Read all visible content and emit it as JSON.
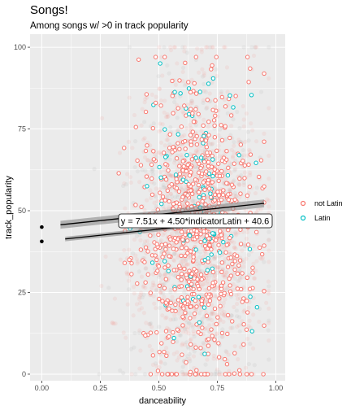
{
  "chart_data": {
    "type": "scatter",
    "title": "Songs!",
    "subtitle": "Among songs w/ >0 in track popularity",
    "xlabel": "danceability",
    "ylabel": "track_popularity",
    "xlim": [
      -0.05,
      1.04
    ],
    "ylim": [
      -2,
      104
    ],
    "x_ticks": [
      0,
      0.25,
      0.5,
      0.75,
      1
    ],
    "x_tick_labels": [
      "0.00",
      "0.25",
      "0.50",
      "0.75",
      "1.00"
    ],
    "y_ticks": [
      0,
      25,
      50,
      75,
      100
    ],
    "y_tick_labels": [
      "0",
      "25",
      "50",
      "75",
      "100"
    ],
    "grid": true,
    "legend": {
      "position": "right",
      "entries": [
        {
          "label": "not Latin",
          "color": "#F8766D"
        },
        {
          "label": "Latin",
          "color": "#00BFC4"
        }
      ]
    },
    "series": [
      {
        "name": "not Latin",
        "color": "#F8766D",
        "trend": {
          "intercept": 40.6,
          "slope": 7.51,
          "x_range": [
            0.1,
            0.95
          ]
        }
      },
      {
        "name": "Latin",
        "color": "#00BFC4",
        "trend": {
          "intercept": 45.1,
          "slope": 7.51,
          "x_range": [
            0.08,
            0.95
          ]
        }
      }
    ],
    "zero_points": [
      {
        "x": 0.0,
        "y": 45
      },
      {
        "x": 0.0,
        "y": 40.6
      }
    ],
    "annotation": {
      "text": "y = 7.51x + 4.50*indicatorLatin + 40.6",
      "x": 0.64,
      "y": 46.2
    },
    "background_color": "#EBEBEB",
    "grid_color": "#FFFFFF"
  }
}
